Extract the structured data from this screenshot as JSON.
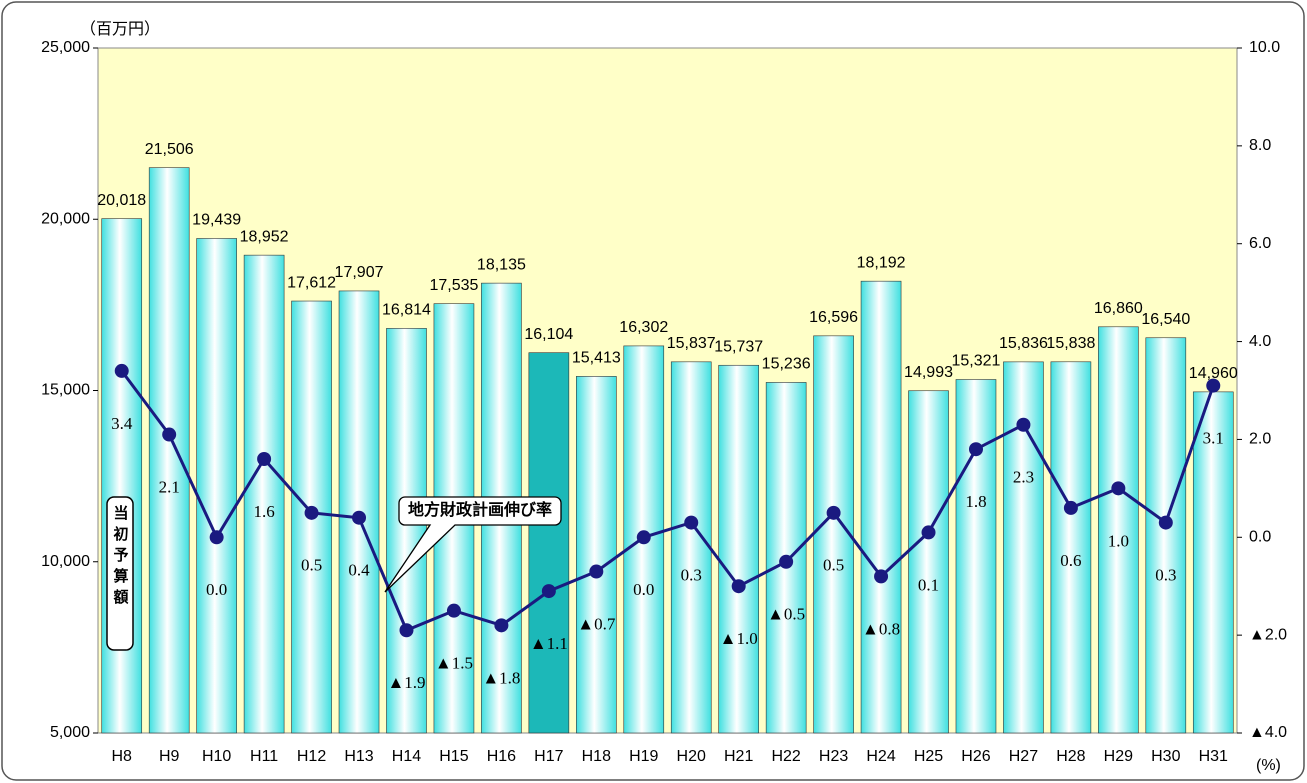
{
  "chart_data": {
    "type": "bar_line",
    "y_unit_label": "（百万円）",
    "y2_unit_label": "(%)",
    "y_axis_label": "当初予算額",
    "callout": "地方財政計画伸び率",
    "categories": [
      "H8",
      "H9",
      "H10",
      "H11",
      "H12",
      "H13",
      "H14",
      "H15",
      "H16",
      "H17",
      "H18",
      "H19",
      "H20",
      "H21",
      "H22",
      "H23",
      "H24",
      "H25",
      "H26",
      "H27",
      "H28",
      "H29",
      "H30",
      "H31"
    ],
    "series": [
      {
        "type": "bar",
        "values": [
          20018,
          21506,
          19439,
          18952,
          17612,
          17907,
          16814,
          17535,
          18135,
          16104,
          15413,
          16302,
          15837,
          15737,
          15236,
          16596,
          18192,
          14993,
          15321,
          15836,
          15838,
          16860,
          16540,
          14960
        ],
        "value_labels": [
          "20,018",
          "21,506",
          "19,439",
          "18,952",
          "17,612",
          "17,907",
          "16,814",
          "17,535",
          "18,135",
          "16,104",
          "15,413",
          "16,302",
          "15,837",
          "15,737",
          "15,236",
          "16,596",
          "18,192",
          "14,993",
          "15,321",
          "15,836",
          "15,838",
          "16,860",
          "16,540",
          "14,960"
        ],
        "colors": [
          "#40e0e0",
          "#40e0e0",
          "#40e0e0",
          "#40e0e0",
          "#40e0e0",
          "#40e0e0",
          "#40e0e0",
          "#40e0e0",
          "#40e0e0",
          "#1cb8b8",
          "#40e0e0",
          "#40e0e0",
          "#40e0e0",
          "#40e0e0",
          "#40e0e0",
          "#40e0e0",
          "#40e0e0",
          "#40e0e0",
          "#40e0e0",
          "#40e0e0",
          "#40e0e0",
          "#40e0e0",
          "#40e0e0",
          "#40e0e0"
        ]
      },
      {
        "type": "line",
        "axis": "y2",
        "color": "#1a1a80",
        "values": [
          3.4,
          2.1,
          0.0,
          1.6,
          0.5,
          0.4,
          -1.9,
          -1.5,
          -1.8,
          -1.1,
          -0.7,
          0.0,
          0.3,
          -1.0,
          -0.5,
          0.5,
          -0.8,
          0.1,
          1.8,
          2.3,
          0.6,
          1.0,
          0.3,
          3.1
        ],
        "value_labels": [
          "3.4",
          "2.1",
          "0.0",
          "1.6",
          "0.5",
          "0.4",
          "▲1.9",
          "▲1.5",
          "▲1.8",
          "▲1.1",
          "▲0.7",
          "0.0",
          "0.3",
          "▲1.0",
          "▲0.5",
          "0.5",
          "▲0.8",
          "0.1",
          "1.8",
          "2.3",
          "0.6",
          "1.0",
          "0.3",
          "3.1"
        ]
      }
    ],
    "ylim": [
      5000,
      25000
    ],
    "yticks": [
      {
        "value": 5000,
        "label": "5,000"
      },
      {
        "value": 10000,
        "label": "10,000"
      },
      {
        "value": 15000,
        "label": "15,000"
      },
      {
        "value": 20000,
        "label": "20,000"
      },
      {
        "value": 25000,
        "label": "25,000"
      }
    ],
    "y2lim": [
      -4,
      10
    ],
    "y2ticks": [
      {
        "value": -4,
        "label": "▲4.0"
      },
      {
        "value": -2,
        "label": "▲2.0"
      },
      {
        "value": 0,
        "label": "0.0"
      },
      {
        "value": 2,
        "label": "2.0"
      },
      {
        "value": 4,
        "label": "4.0"
      },
      {
        "value": 6,
        "label": "6.0"
      },
      {
        "value": 8,
        "label": "8.0"
      },
      {
        "value": 10,
        "label": "10.0"
      }
    ],
    "negative_tick_color": "#ff0000",
    "plot_background": "#ffffc8"
  }
}
